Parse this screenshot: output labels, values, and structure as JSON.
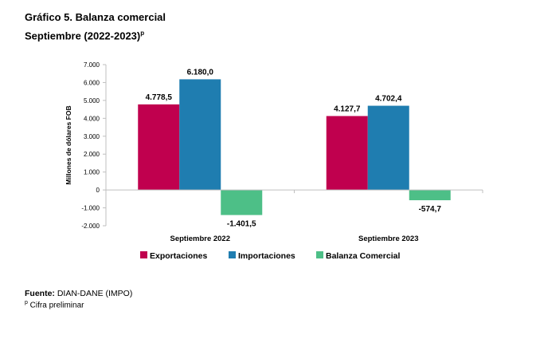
{
  "header": {
    "title_line1": "Gráfico 5. Balanza comercial",
    "title_line2": "Septiembre (2022-2023)",
    "title_superscript": "p"
  },
  "chart_data": {
    "type": "bar",
    "categories": [
      "Septiembre 2022",
      "Septiembre 2023"
    ],
    "series": [
      {
        "name": "Exportaciones",
        "color": "#C0004E",
        "values": [
          4778.5,
          4127.7
        ],
        "labels": [
          "4.778,5",
          "4.127,7"
        ]
      },
      {
        "name": "Importaciones",
        "color": "#1F7DB0",
        "values": [
          6180.0,
          4702.4
        ],
        "labels": [
          "6.180,0",
          "4.702,4"
        ]
      },
      {
        "name": "Balanza Comercial",
        "color": "#4DBF87",
        "values": [
          -1401.5,
          -574.7
        ],
        "labels": [
          "-1.401,5",
          "-574,7"
        ]
      }
    ],
    "ylabel": "Millones de dólares FOB",
    "xlabel": "",
    "ylim": [
      -2000,
      7000
    ],
    "yticks": [
      7000,
      6000,
      5000,
      4000,
      3000,
      2000,
      1000,
      0,
      -1000,
      -2000
    ],
    "ytick_labels": [
      "7.000",
      "6.000",
      "5.000",
      "4.000",
      "3.000",
      "2.000",
      "1.000",
      "0",
      "-1.000",
      "-2.000"
    ],
    "grid": false,
    "legend": "bottom"
  },
  "footer": {
    "source_label": "Fuente:",
    "source_text": " DIAN-DANE (IMPO)",
    "note_mark": "p",
    "note_text": " Cifra preliminar"
  }
}
